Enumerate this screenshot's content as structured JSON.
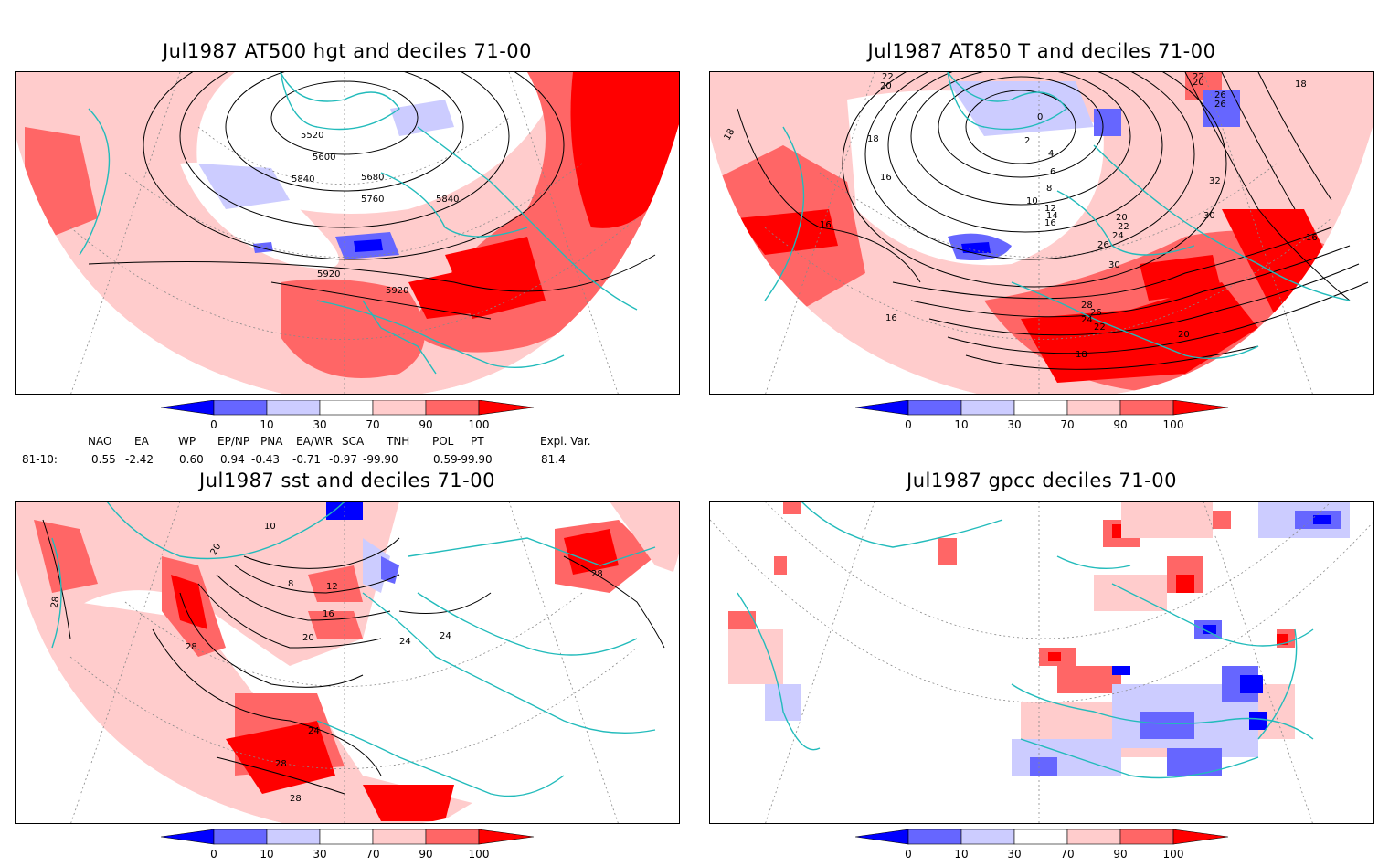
{
  "panels": [
    {
      "title": "Jul1987 AT500 hgt and deciles 71-00",
      "contour_labels": [
        "5520",
        "5600",
        "5680",
        "5760",
        "5840",
        "5840",
        "5920",
        "5920"
      ]
    },
    {
      "title": "Jul1987 AT850 T and deciles 71-00",
      "contour_labels": [
        "22",
        "20",
        "18",
        "18",
        "16",
        "16",
        "16",
        "10",
        "12",
        "14",
        "16",
        "2",
        "0",
        "4",
        "6",
        "8",
        "20",
        "22",
        "24",
        "26",
        "30",
        "28",
        "26",
        "24",
        "22",
        "18",
        "20",
        "32",
        "30",
        "16",
        "26",
        "26",
        "22",
        "20",
        "18"
      ]
    },
    {
      "title": "Jul1987 sst and deciles 71-00",
      "contour_labels": [
        "28",
        "20",
        "10",
        "8",
        "12",
        "16",
        "20",
        "24",
        "24",
        "28",
        "24",
        "28",
        "28"
      ]
    },
    {
      "title": "Jul1987 gpcc deciles 71-00",
      "contour_labels": []
    }
  ],
  "colorbar": {
    "ticks": [
      "0",
      "10",
      "30",
      "70",
      "90",
      "100"
    ],
    "colors": [
      "#0000ff",
      "#6666ff",
      "#ccccff",
      "#ffffff",
      "#ffcccc",
      "#ff6666",
      "#ff0000"
    ]
  },
  "indices": {
    "row_label": "81-10:",
    "headers": [
      "NAO",
      "EA",
      "WP",
      "EP/NP",
      "PNA",
      "EA/WR",
      "SCA",
      "TNH",
      "POL",
      "PT",
      "Expl. Var."
    ],
    "values": [
      "0.55",
      "-2.42",
      "0.60",
      "0.94",
      "-0.43",
      "-0.71",
      "-0.97",
      "-99.90",
      "0.59",
      "-99.90",
      "81.4"
    ]
  },
  "colors": {
    "coast": "#22bbbb",
    "contour": "#000000"
  }
}
